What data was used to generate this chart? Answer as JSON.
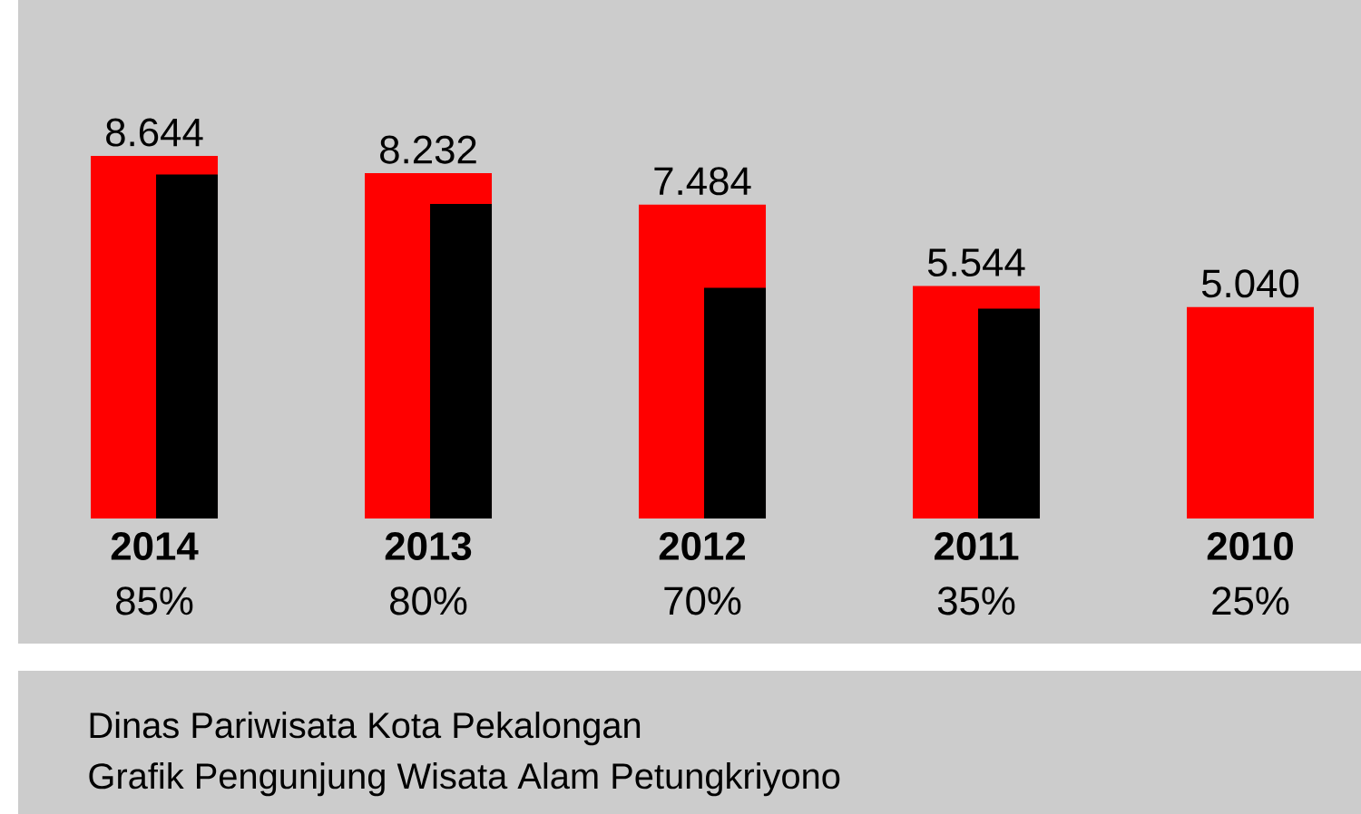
{
  "chart_data": {
    "type": "bar",
    "title": "Grafik Pengunjung Wisata Alam Petungkriyono",
    "subtitle": "Dinas Pariwisata Kota Pekalongan",
    "categories": [
      "2014",
      "2013",
      "2012",
      "2011",
      "2010"
    ],
    "series": [
      {
        "color": "#ff0000",
        "values": [
          8644,
          8232,
          7484,
          5544,
          5040
        ],
        "value_labels": [
          "8.644",
          "8.232",
          "7.484",
          "5.544",
          "5.040"
        ]
      },
      {
        "color": "#000000",
        "values": [
          8200,
          7500,
          5500,
          5000,
          null
        ]
      }
    ],
    "annotations": [
      "85%",
      "80%",
      "70%",
      "35%",
      "25%"
    ]
  }
}
